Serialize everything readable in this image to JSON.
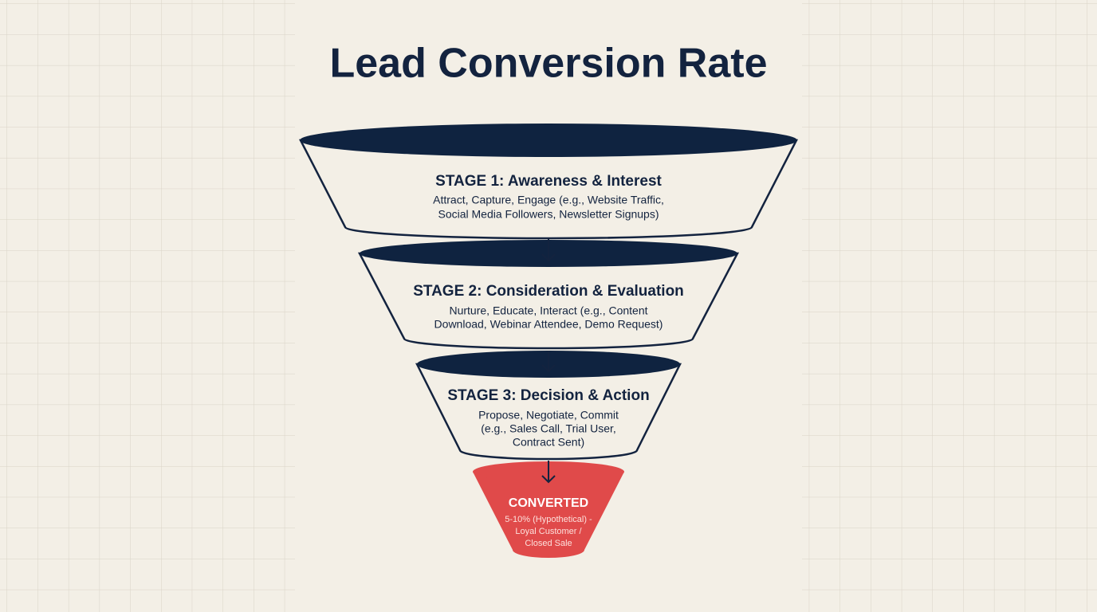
{
  "title": "Lead Conversion Rate",
  "stages": [
    {
      "title": "STAGE 1: Awareness & Interest",
      "description": [
        "Attract, Capture, Engage (e.g., Website Traffic,",
        "Social Media Followers, Newsletter Signups)"
      ]
    },
    {
      "title": "STAGE 2: Consideration & Evaluation",
      "description": [
        "Nurture, Educate, Interact (e.g., Content",
        "Download, Webinar Attendee, Demo Request)"
      ]
    },
    {
      "title": "STAGE 3: Decision & Action",
      "description": [
        "Propose, Negotiate, Commit",
        "(e.g., Sales Call, Trial User,",
        "Contract Sent)"
      ]
    }
  ],
  "converted": {
    "title": "CONVERTED",
    "description": [
      "5-10% (Hypothetical) -",
      "Loyal Customer /",
      "Closed Sale"
    ]
  }
}
